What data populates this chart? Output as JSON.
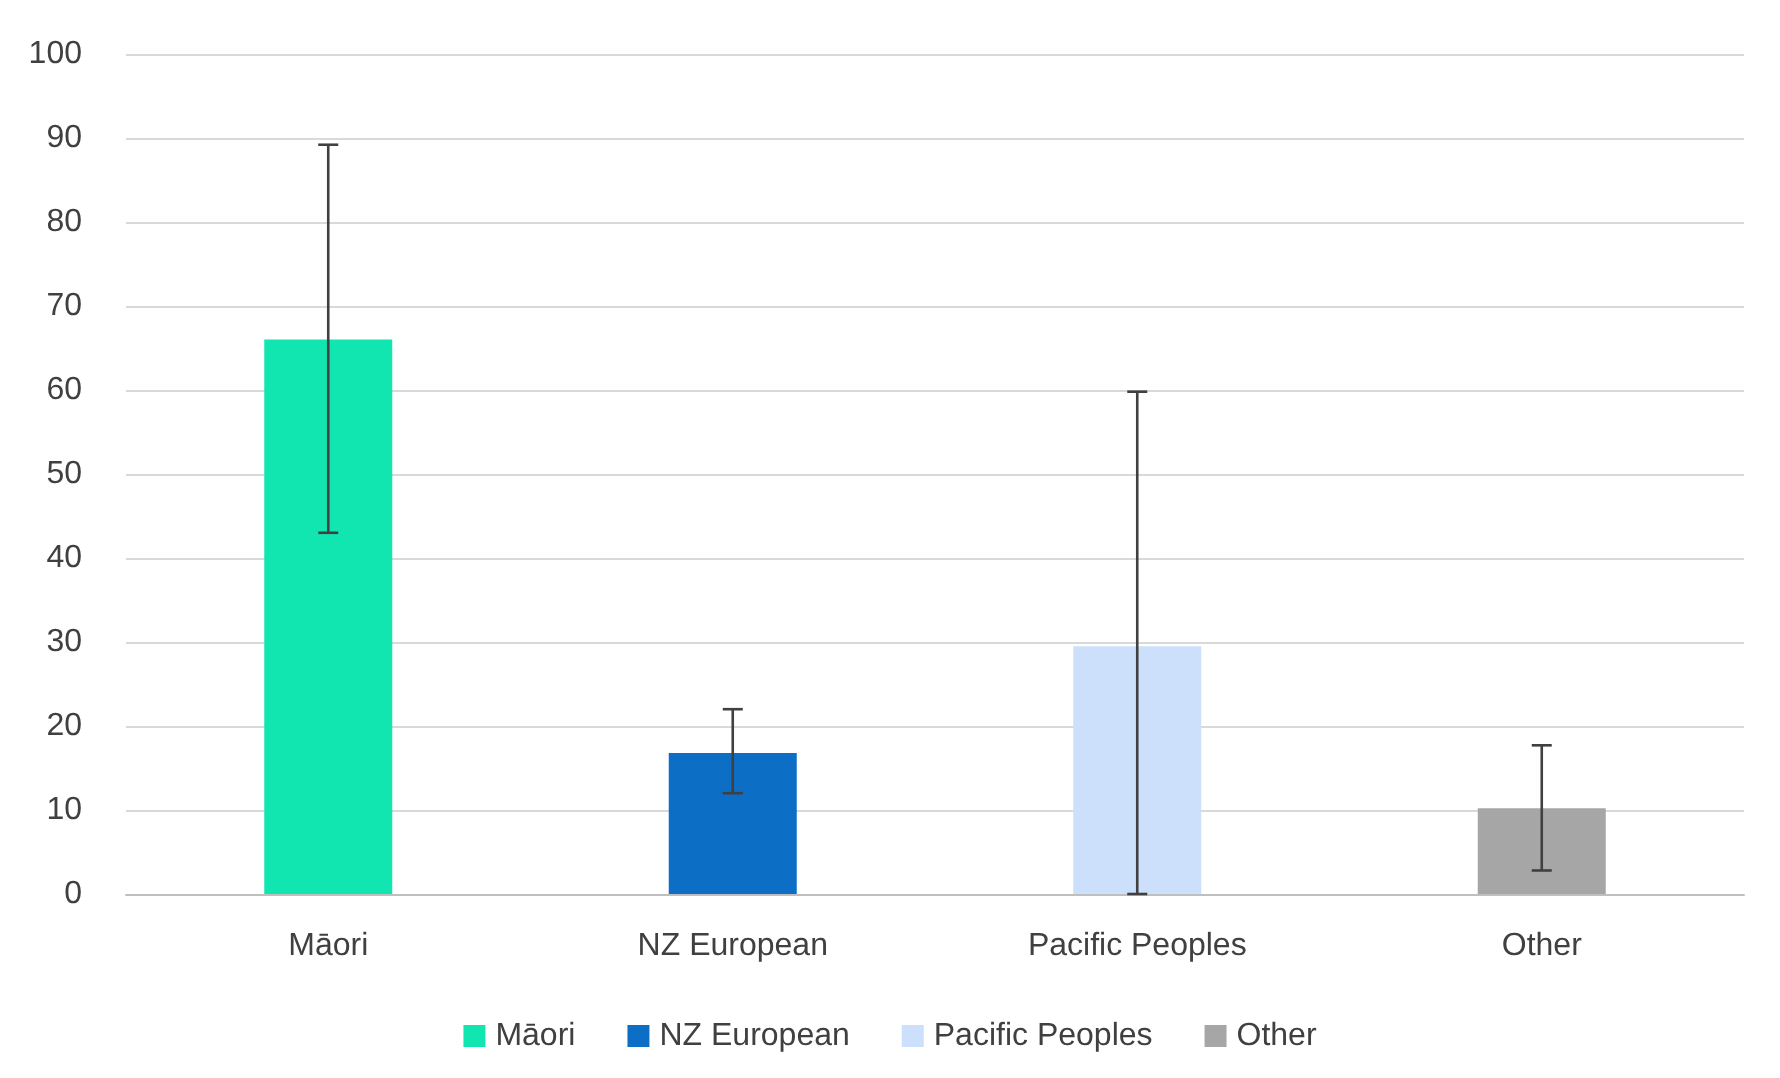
{
  "chart_data": {
    "type": "bar",
    "categories": [
      "Māori",
      "NZ European",
      "Pacific Peoples",
      "Other"
    ],
    "series": [
      {
        "name": "Māori",
        "color": "#12e6b0",
        "values": [
          66,
          null,
          null,
          null
        ],
        "errors": [
          [
            43,
            89.2
          ],
          null,
          null,
          null
        ]
      },
      {
        "name": "NZ European",
        "color": "#0d6ec6",
        "values": [
          null,
          16.8,
          null,
          null
        ],
        "errors": [
          null,
          [
            12,
            22
          ],
          null,
          null
        ]
      },
      {
        "name": "Pacific Peoples",
        "color": "#cce0fb",
        "values": [
          null,
          null,
          29.5,
          null
        ],
        "errors": [
          null,
          null,
          [
            0,
            59.8
          ],
          null
        ]
      },
      {
        "name": "Other",
        "color": "#a6a6a6",
        "values": [
          null,
          null,
          null,
          10.2
        ],
        "errors": [
          null,
          null,
          null,
          [
            2.8,
            17.7
          ]
        ]
      }
    ],
    "ylim": [
      0,
      100
    ],
    "yticks": [
      0,
      10,
      20,
      30,
      40,
      50,
      60,
      70,
      80,
      90,
      100
    ],
    "grid": "y",
    "legend": "bottom"
  }
}
